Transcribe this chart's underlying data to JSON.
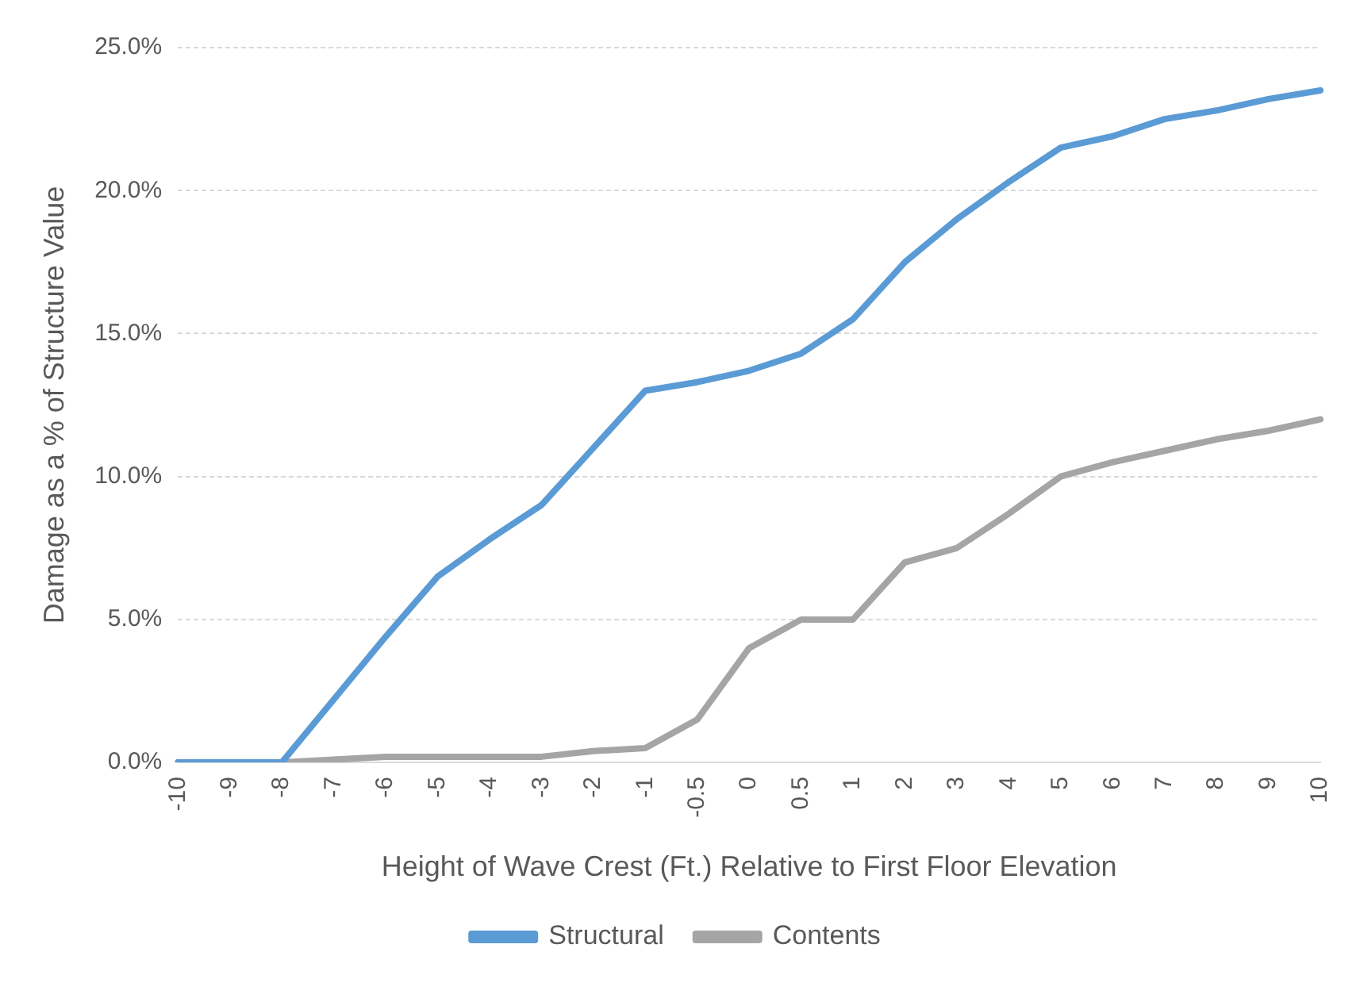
{
  "chart_data": {
    "type": "line",
    "xlabel": "Height of Wave Crest (Ft.) Relative to First Floor Elevation",
    "ylabel": "Damage as a % of Structure Value",
    "categories": [
      "-10",
      "-9",
      "-8",
      "-7",
      "-6",
      "-5",
      "-4",
      "-3",
      "-2",
      "-1",
      "-0.5",
      "0",
      "0.5",
      "1",
      "2",
      "3",
      "4",
      "5",
      "6",
      "7",
      "8",
      "9",
      "10"
    ],
    "series": [
      {
        "name": "Structural",
        "color": "#5b9bd5",
        "values": [
          0,
          0,
          0,
          2.2,
          4.4,
          6.5,
          7.8,
          9,
          11,
          13,
          13.3,
          13.7,
          14.3,
          15.5,
          17.5,
          19,
          20.3,
          21.5,
          21.9,
          22.5,
          22.8,
          23.2,
          23.5
        ]
      },
      {
        "name": "Contents",
        "color": "#a5a5a5",
        "values": [
          0,
          0,
          0,
          0.1,
          0.2,
          0.2,
          0.2,
          0.2,
          0.4,
          0.5,
          1.5,
          4,
          5,
          5,
          7,
          7.5,
          8.7,
          10,
          10.5,
          10.9,
          11.3,
          11.6,
          12
        ]
      }
    ],
    "ylim": [
      0,
      25
    ],
    "yticks": [
      {
        "value": 0,
        "label": "0.0%"
      },
      {
        "value": 5,
        "label": "5.0%"
      },
      {
        "value": 10,
        "label": "10.0%"
      },
      {
        "value": 15,
        "label": "15.0%"
      },
      {
        "value": 20,
        "label": "20.0%"
      },
      {
        "value": 25,
        "label": "25.0%"
      }
    ],
    "grid": "y",
    "legend": "bottom",
    "marker": "none",
    "line_style": "solid"
  }
}
